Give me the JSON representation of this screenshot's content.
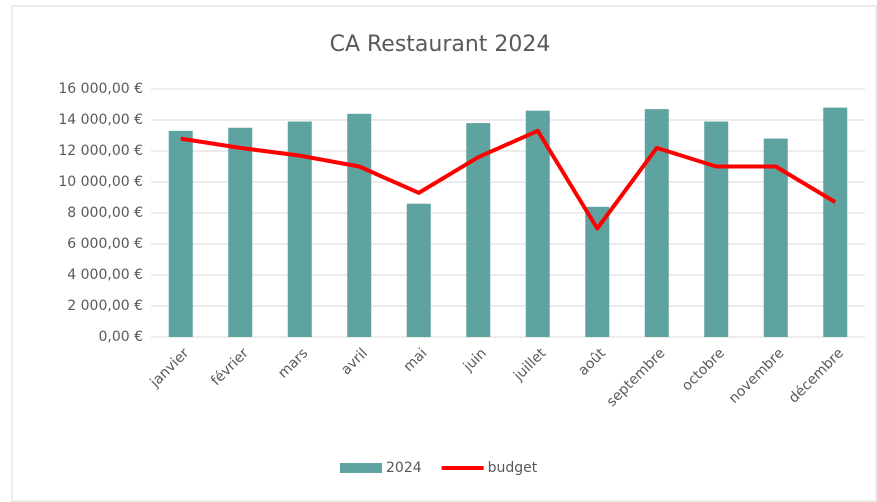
{
  "chart_data": {
    "type": "bar",
    "title": "CA Restaurant 2024",
    "categories": [
      "janvier",
      "février",
      "mars",
      "avril",
      "mai",
      "juin",
      "juillet",
      "août",
      "septembre",
      "octobre",
      "novembre",
      "décembre"
    ],
    "series": [
      {
        "name": "2024",
        "type": "bar",
        "color": "#5fa3a0",
        "values": [
          13300,
          13500,
          13900,
          14400,
          8600,
          13800,
          14600,
          8400,
          14700,
          13900,
          12800,
          14800
        ]
      },
      {
        "name": "budget",
        "type": "line",
        "color": "#ff0000",
        "values": [
          12800,
          12200,
          11700,
          11000,
          9300,
          11600,
          13300,
          7000,
          12200,
          11000,
          11000,
          8700
        ]
      }
    ],
    "ylim": [
      0,
      16000
    ],
    "yticks": [
      {
        "value": 0,
        "label": "0,00 €"
      },
      {
        "value": 2000,
        "label": "2 000,00 €"
      },
      {
        "value": 4000,
        "label": "4 000,00 €"
      },
      {
        "value": 6000,
        "label": "6 000,00 €"
      },
      {
        "value": 8000,
        "label": "8 000,00 €"
      },
      {
        "value": 10000,
        "label": "10 000,00 €"
      },
      {
        "value": 12000,
        "label": "12 000,00 €"
      },
      {
        "value": 14000,
        "label": "14 000,00 €"
      },
      {
        "value": 16000,
        "label": "16 000,00 €"
      }
    ],
    "grid": true,
    "legend": "bottom"
  }
}
